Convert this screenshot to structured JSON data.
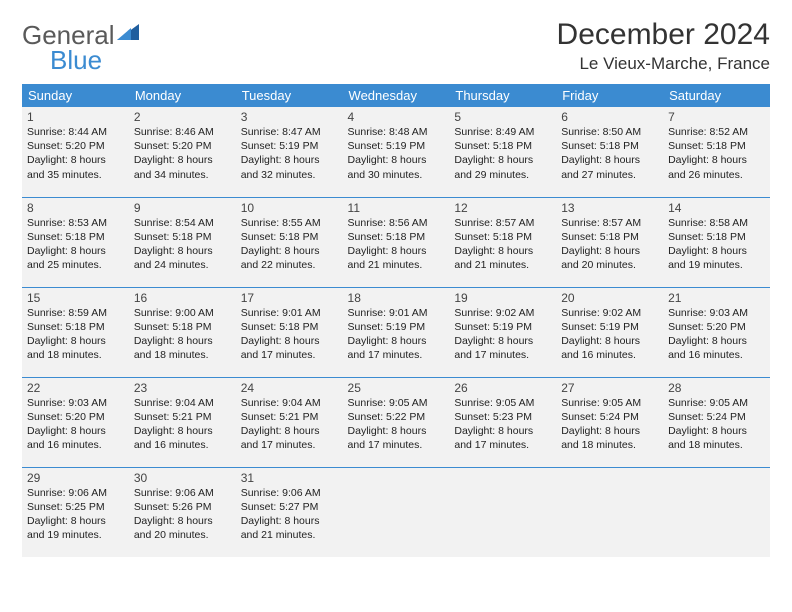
{
  "logo": {
    "general": "General",
    "blue": "Blue"
  },
  "title": "December 2024",
  "location": "Le Vieux-Marche, France",
  "colors": {
    "header_bg": "#3b8bd1",
    "header_text": "#ffffff",
    "cell_bg": "#f2f2f2",
    "border": "#3b8bd1",
    "logo_gray": "#5a5a5a",
    "logo_blue": "#3b8bd1"
  },
  "days_of_week": [
    "Sunday",
    "Monday",
    "Tuesday",
    "Wednesday",
    "Thursday",
    "Friday",
    "Saturday"
  ],
  "days": [
    {
      "n": "1",
      "sunrise": "8:44 AM",
      "sunset": "5:20 PM",
      "daylight": "8 hours and 35 minutes."
    },
    {
      "n": "2",
      "sunrise": "8:46 AM",
      "sunset": "5:20 PM",
      "daylight": "8 hours and 34 minutes."
    },
    {
      "n": "3",
      "sunrise": "8:47 AM",
      "sunset": "5:19 PM",
      "daylight": "8 hours and 32 minutes."
    },
    {
      "n": "4",
      "sunrise": "8:48 AM",
      "sunset": "5:19 PM",
      "daylight": "8 hours and 30 minutes."
    },
    {
      "n": "5",
      "sunrise": "8:49 AM",
      "sunset": "5:18 PM",
      "daylight": "8 hours and 29 minutes."
    },
    {
      "n": "6",
      "sunrise": "8:50 AM",
      "sunset": "5:18 PM",
      "daylight": "8 hours and 27 minutes."
    },
    {
      "n": "7",
      "sunrise": "8:52 AM",
      "sunset": "5:18 PM",
      "daylight": "8 hours and 26 minutes."
    },
    {
      "n": "8",
      "sunrise": "8:53 AM",
      "sunset": "5:18 PM",
      "daylight": "8 hours and 25 minutes."
    },
    {
      "n": "9",
      "sunrise": "8:54 AM",
      "sunset": "5:18 PM",
      "daylight": "8 hours and 24 minutes."
    },
    {
      "n": "10",
      "sunrise": "8:55 AM",
      "sunset": "5:18 PM",
      "daylight": "8 hours and 22 minutes."
    },
    {
      "n": "11",
      "sunrise": "8:56 AM",
      "sunset": "5:18 PM",
      "daylight": "8 hours and 21 minutes."
    },
    {
      "n": "12",
      "sunrise": "8:57 AM",
      "sunset": "5:18 PM",
      "daylight": "8 hours and 21 minutes."
    },
    {
      "n": "13",
      "sunrise": "8:57 AM",
      "sunset": "5:18 PM",
      "daylight": "8 hours and 20 minutes."
    },
    {
      "n": "14",
      "sunrise": "8:58 AM",
      "sunset": "5:18 PM",
      "daylight": "8 hours and 19 minutes."
    },
    {
      "n": "15",
      "sunrise": "8:59 AM",
      "sunset": "5:18 PM",
      "daylight": "8 hours and 18 minutes."
    },
    {
      "n": "16",
      "sunrise": "9:00 AM",
      "sunset": "5:18 PM",
      "daylight": "8 hours and 18 minutes."
    },
    {
      "n": "17",
      "sunrise": "9:01 AM",
      "sunset": "5:18 PM",
      "daylight": "8 hours and 17 minutes."
    },
    {
      "n": "18",
      "sunrise": "9:01 AM",
      "sunset": "5:19 PM",
      "daylight": "8 hours and 17 minutes."
    },
    {
      "n": "19",
      "sunrise": "9:02 AM",
      "sunset": "5:19 PM",
      "daylight": "8 hours and 17 minutes."
    },
    {
      "n": "20",
      "sunrise": "9:02 AM",
      "sunset": "5:19 PM",
      "daylight": "8 hours and 16 minutes."
    },
    {
      "n": "21",
      "sunrise": "9:03 AM",
      "sunset": "5:20 PM",
      "daylight": "8 hours and 16 minutes."
    },
    {
      "n": "22",
      "sunrise": "9:03 AM",
      "sunset": "5:20 PM",
      "daylight": "8 hours and 16 minutes."
    },
    {
      "n": "23",
      "sunrise": "9:04 AM",
      "sunset": "5:21 PM",
      "daylight": "8 hours and 16 minutes."
    },
    {
      "n": "24",
      "sunrise": "9:04 AM",
      "sunset": "5:21 PM",
      "daylight": "8 hours and 17 minutes."
    },
    {
      "n": "25",
      "sunrise": "9:05 AM",
      "sunset": "5:22 PM",
      "daylight": "8 hours and 17 minutes."
    },
    {
      "n": "26",
      "sunrise": "9:05 AM",
      "sunset": "5:23 PM",
      "daylight": "8 hours and 17 minutes."
    },
    {
      "n": "27",
      "sunrise": "9:05 AM",
      "sunset": "5:24 PM",
      "daylight": "8 hours and 18 minutes."
    },
    {
      "n": "28",
      "sunrise": "9:05 AM",
      "sunset": "5:24 PM",
      "daylight": "8 hours and 18 minutes."
    },
    {
      "n": "29",
      "sunrise": "9:06 AM",
      "sunset": "5:25 PM",
      "daylight": "8 hours and 19 minutes."
    },
    {
      "n": "30",
      "sunrise": "9:06 AM",
      "sunset": "5:26 PM",
      "daylight": "8 hours and 20 minutes."
    },
    {
      "n": "31",
      "sunrise": "9:06 AM",
      "sunset": "5:27 PM",
      "daylight": "8 hours and 21 minutes."
    }
  ],
  "labels": {
    "sunrise_prefix": "Sunrise: ",
    "sunset_prefix": "Sunset: ",
    "daylight_prefix": "Daylight: "
  },
  "layout": {
    "first_day_column": 0,
    "total_days": 31,
    "columns": 7
  }
}
